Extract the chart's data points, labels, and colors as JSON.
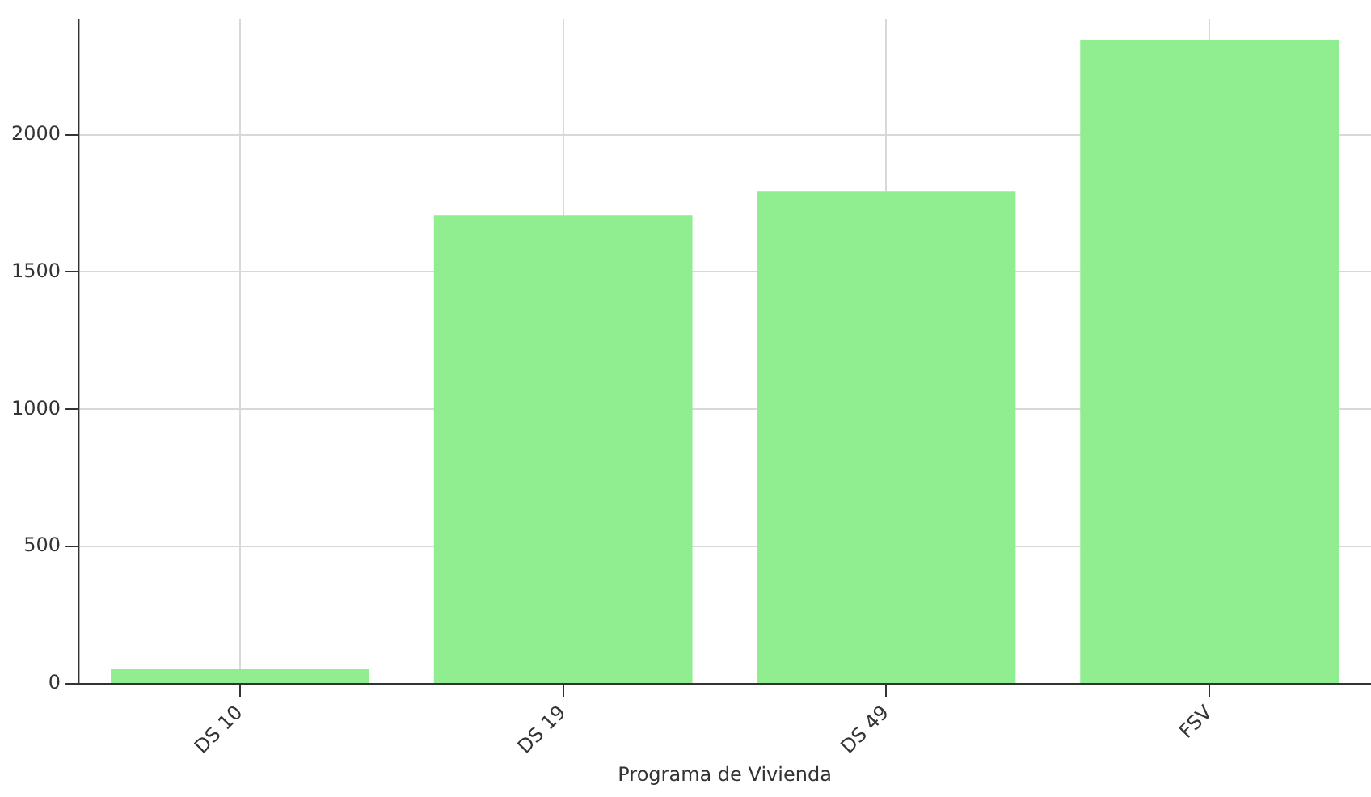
{
  "chart_data": {
    "type": "bar",
    "xlabel": "Programa de Vivienda",
    "categories": [
      "DS 10",
      "DS 19",
      "DS 49",
      "FSV"
    ],
    "values": [
      53,
      1707,
      1795,
      2344
    ],
    "color": "#90ee90",
    "ylim": [
      0,
      2420
    ],
    "yticks": [
      0,
      500,
      1000,
      1500,
      2000
    ],
    "grid": true,
    "legend": false
  }
}
